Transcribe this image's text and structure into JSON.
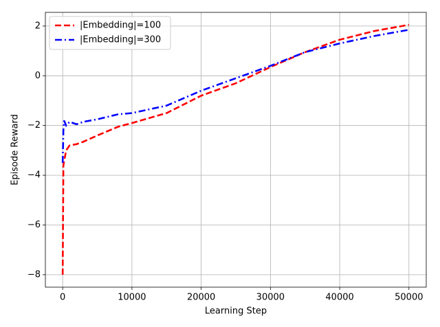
{
  "chart_data": {
    "type": "line",
    "xlabel": "Learning Step",
    "ylabel": "Episode Reward",
    "xlim": [
      -2500,
      52500
    ],
    "ylim": [
      -8.5,
      2.55
    ],
    "xticks": [
      0,
      10000,
      20000,
      30000,
      40000,
      50000
    ],
    "yticks": [
      {
        "value": -8,
        "label": "−8"
      },
      {
        "value": -6,
        "label": "−6"
      },
      {
        "value": -4,
        "label": "−4"
      },
      {
        "value": -2,
        "label": "−2"
      },
      0,
      2
    ],
    "grid": true,
    "legend": "upper left",
    "series": [
      {
        "name": "|Embedding|=100",
        "color": "#ff0000",
        "linestyle": "dashed",
        "x": [
          0,
          100,
          300,
          500,
          1000,
          2000,
          3000,
          5000,
          8000,
          10000,
          15000,
          20000,
          25000,
          30000,
          35000,
          40000,
          45000,
          50000
        ],
        "values": [
          -8,
          -3.6,
          -3.3,
          -3.0,
          -2.8,
          -2.75,
          -2.65,
          -2.4,
          -2.05,
          -1.9,
          -1.5,
          -0.8,
          -0.3,
          0.35,
          0.95,
          1.45,
          1.8,
          2.05
        ]
      },
      {
        "name": "|Embedding|=300",
        "color": "#0000ff",
        "linestyle": "dashdot",
        "x": [
          0,
          100,
          200,
          500,
          1000,
          2000,
          3000,
          5000,
          8000,
          10000,
          15000,
          20000,
          25000,
          30000,
          35000,
          40000,
          45000,
          50000
        ],
        "values": [
          -3.5,
          -2.2,
          -1.8,
          -2.0,
          -1.85,
          -1.95,
          -1.85,
          -1.75,
          -1.55,
          -1.5,
          -1.2,
          -0.6,
          -0.1,
          0.4,
          0.95,
          1.3,
          1.6,
          1.85
        ]
      }
    ]
  }
}
